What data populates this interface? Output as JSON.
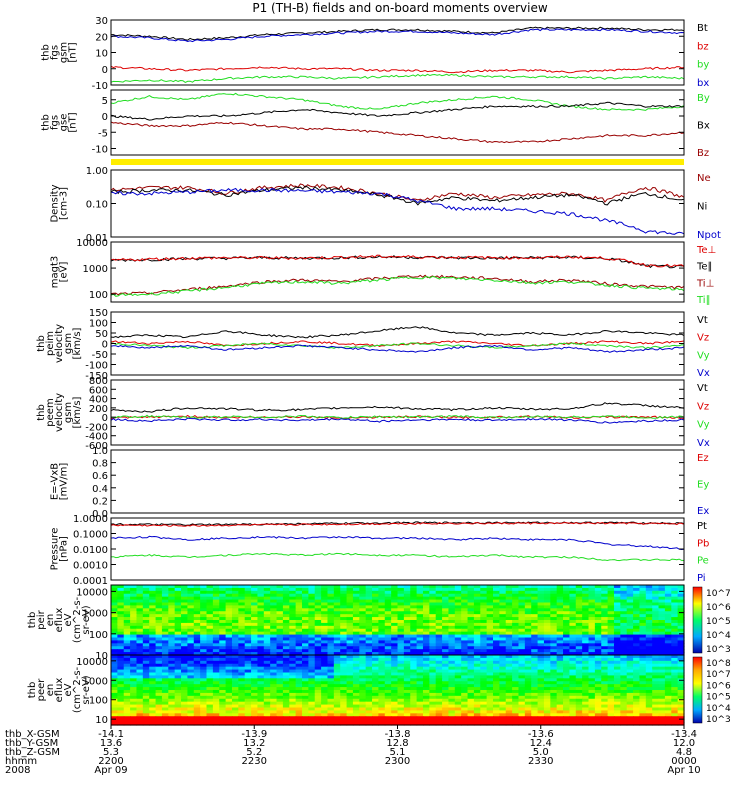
{
  "title": "P1 (TH-B) fields and on-board moments overview",
  "colors": {
    "black": "#000000",
    "red": "#dd0000",
    "darkred": "#990000",
    "green": "#22dd22",
    "blue": "#0000cc",
    "yellow": "#ffee00"
  },
  "chart_data": [
    {
      "type": "line",
      "panel": "fgs_gsm",
      "ylabel": [
        "thb",
        "fgs",
        "gsm",
        "[nT]"
      ],
      "ylim": [
        -10,
        30
      ],
      "yticks": [
        "30",
        "20",
        "10",
        "0",
        "-10"
      ],
      "legend": [
        {
          "name": "Bt",
          "color": "black"
        },
        {
          "name": "bz",
          "color": "red"
        },
        {
          "name": "by",
          "color": "green"
        },
        {
          "name": "bx",
          "color": "blue"
        }
      ],
      "series": [
        {
          "name": "Bt",
          "color": "black",
          "values": [
            21,
            20,
            18,
            19,
            21,
            22,
            23,
            24,
            24,
            23,
            22,
            25,
            25,
            25,
            24,
            24
          ]
        },
        {
          "name": "bx",
          "color": "blue",
          "values": [
            20,
            19,
            17,
            18,
            20,
            21,
            22,
            23,
            23,
            22,
            21,
            24,
            24,
            24,
            23,
            22
          ]
        },
        {
          "name": "bz",
          "color": "red",
          "values": [
            1,
            0,
            -1,
            0,
            1,
            0,
            0,
            -1,
            -1,
            -2,
            -1,
            -1,
            -2,
            -1,
            0,
            1
          ]
        },
        {
          "name": "by",
          "color": "green",
          "values": [
            -8,
            -7,
            -8,
            -6,
            -5,
            -5,
            -6,
            -5,
            -4,
            -4,
            -5,
            -5,
            -5,
            -6,
            -5,
            -6
          ]
        }
      ]
    },
    {
      "type": "line",
      "panel": "fgs_gse",
      "ylabel": [
        "thb",
        "fgs",
        "gse",
        "[nT]"
      ],
      "ylim": [
        -12,
        8
      ],
      "yticks": [
        "5",
        "0",
        "-5",
        "-10"
      ],
      "legend": [
        {
          "name": "By",
          "color": "green"
        },
        {
          "name": "Bx",
          "color": "black"
        },
        {
          "name": "Bz",
          "color": "darkred"
        }
      ],
      "series": [
        {
          "name": "By",
          "color": "green",
          "values": [
            4,
            6,
            5,
            7,
            6,
            5,
            3,
            2,
            4,
            5,
            6,
            5,
            3,
            2,
            2,
            3
          ]
        },
        {
          "name": "Bx",
          "color": "black",
          "values": [
            0,
            -1,
            0,
            0,
            1,
            2,
            1,
            0,
            1,
            2,
            3,
            3,
            3,
            4,
            3,
            3
          ]
        },
        {
          "name": "Bz",
          "color": "darkred",
          "values": [
            -2,
            -3,
            -3,
            -2,
            -3,
            -4,
            -4,
            -5,
            -6,
            -7,
            -8,
            -8,
            -7,
            -6,
            -6,
            -5
          ]
        }
      ]
    },
    {
      "type": "line",
      "panel": "density",
      "ylabel": [
        "Density",
        "[cm-3]"
      ],
      "scale": "log",
      "ylim": [
        0.01,
        1.0
      ],
      "yticks": [
        "1.00",
        "0.10",
        "0.01"
      ],
      "legend": [
        {
          "name": "Ne",
          "color": "darkred"
        },
        {
          "name": "Ni",
          "color": "black"
        },
        {
          "name": "Npot",
          "color": "blue"
        }
      ],
      "series": [
        {
          "name": "Ne",
          "color": "darkred",
          "values": [
            0.25,
            0.3,
            0.3,
            0.2,
            0.3,
            0.35,
            0.3,
            0.2,
            0.12,
            0.2,
            0.15,
            0.18,
            0.2,
            0.12,
            0.3,
            0.15
          ]
        },
        {
          "name": "Ni",
          "color": "black",
          "values": [
            0.22,
            0.25,
            0.25,
            0.18,
            0.25,
            0.3,
            0.25,
            0.18,
            0.1,
            0.15,
            0.12,
            0.15,
            0.18,
            0.1,
            0.2,
            0.12
          ]
        },
        {
          "name": "Npot",
          "color": "blue",
          "values": [
            0.2,
            0.2,
            0.22,
            0.25,
            0.25,
            0.24,
            0.22,
            0.2,
            0.12,
            0.07,
            0.07,
            0.06,
            0.05,
            0.03,
            0.015,
            0.012
          ]
        }
      ]
    },
    {
      "type": "line",
      "panel": "temperature",
      "ylabel": [
        "magt3",
        "[eV]"
      ],
      "scale": "log",
      "ylim": [
        50,
        10000
      ],
      "yticks": [
        "10000",
        "1000",
        "100"
      ],
      "legend": [
        {
          "name": "Te⊥",
          "color": "red"
        },
        {
          "name": "Te∥",
          "color": "black"
        },
        {
          "name": "Ti⊥",
          "color": "darkred"
        },
        {
          "name": "Ti∥",
          "color": "green"
        }
      ],
      "series": [
        {
          "name": "Te∥",
          "color": "black",
          "values": [
            2000,
            2100,
            2300,
            2400,
            2500,
            2400,
            2500,
            2700,
            2600,
            2500,
            2400,
            2500,
            2600,
            2300,
            1200,
            1100
          ]
        },
        {
          "name": "Te⊥",
          "color": "red",
          "values": [
            2000,
            2200,
            2400,
            2500,
            2500,
            2400,
            2600,
            2800,
            2700,
            2600,
            2500,
            2500,
            2700,
            2400,
            1300,
            1200
          ]
        },
        {
          "name": "Ti⊥",
          "color": "darkred",
          "values": [
            100,
            110,
            150,
            200,
            300,
            350,
            300,
            400,
            500,
            450,
            400,
            300,
            350,
            250,
            200,
            180
          ]
        },
        {
          "name": "Ti∥",
          "color": "green",
          "values": [
            90,
            100,
            130,
            180,
            260,
            300,
            260,
            350,
            450,
            400,
            350,
            270,
            300,
            220,
            170,
            150
          ]
        }
      ]
    },
    {
      "type": "line",
      "panel": "peim_velocity",
      "ylabel": [
        "thb",
        "peim",
        "velocity",
        "gsm",
        "[km/s]"
      ],
      "ylim": [
        -150,
        150
      ],
      "yticks": [
        "150",
        "100",
        "50",
        "0",
        "-50",
        "-100",
        "-150"
      ],
      "legend": [
        {
          "name": "Vt",
          "color": "black"
        },
        {
          "name": "Vz",
          "color": "red"
        },
        {
          "name": "Vy",
          "color": "green"
        },
        {
          "name": "Vx",
          "color": "blue"
        }
      ],
      "series": [
        {
          "name": "Vt",
          "color": "black",
          "values": [
            30,
            40,
            30,
            60,
            40,
            30,
            40,
            60,
            80,
            50,
            40,
            50,
            40,
            60,
            50,
            40
          ]
        },
        {
          "name": "Vz",
          "color": "red",
          "values": [
            10,
            0,
            10,
            -10,
            0,
            10,
            0,
            -10,
            0,
            10,
            0,
            -10,
            0,
            10,
            0,
            10
          ]
        },
        {
          "name": "Vy",
          "color": "green",
          "values": [
            0,
            -10,
            -20,
            -10,
            0,
            -10,
            -20,
            -10,
            0,
            -10,
            -20,
            -10,
            0,
            -10,
            -20,
            -10
          ]
        },
        {
          "name": "Vx",
          "color": "blue",
          "values": [
            -10,
            -20,
            -10,
            -30,
            -20,
            -10,
            -20,
            -30,
            -40,
            -20,
            -10,
            -30,
            -20,
            -40,
            -30,
            -20
          ]
        }
      ]
    },
    {
      "type": "line",
      "panel": "peem_velocity",
      "ylabel": [
        "thb",
        "peem",
        "velocity",
        "gsm",
        "[km/s]"
      ],
      "ylim": [
        -600,
        800
      ],
      "yticks": [
        "800",
        "600",
        "400",
        "200",
        "0",
        "-200",
        "-400",
        "-600"
      ],
      "legend": [
        {
          "name": "Vt",
          "color": "black"
        },
        {
          "name": "Vz",
          "color": "red"
        },
        {
          "name": "Vy",
          "color": "green"
        },
        {
          "name": "Vx",
          "color": "blue"
        }
      ],
      "series": [
        {
          "name": "Vt",
          "color": "black",
          "values": [
            150,
            120,
            200,
            180,
            150,
            160,
            200,
            220,
            180,
            160,
            200,
            170,
            180,
            300,
            250,
            200
          ]
        },
        {
          "name": "Vz",
          "color": "red",
          "values": [
            -20,
            0,
            20,
            -10,
            0,
            10,
            -20,
            0,
            10,
            -10,
            0,
            20,
            -10,
            0,
            10,
            -20
          ]
        },
        {
          "name": "Vy",
          "color": "green",
          "values": [
            0,
            20,
            -10,
            10,
            0,
            20,
            -10,
            10,
            0,
            20,
            -10,
            10,
            0,
            20,
            -10,
            10
          ]
        },
        {
          "name": "Vx",
          "color": "blue",
          "values": [
            -50,
            -80,
            -40,
            -60,
            -50,
            -70,
            -40,
            -90,
            -60,
            -50,
            -70,
            -40,
            -60,
            -120,
            -80,
            -60
          ]
        }
      ]
    },
    {
      "type": "line",
      "panel": "efield",
      "ylabel": [
        "E=-VxB",
        "[mV/m]"
      ],
      "ylim": [
        0.0,
        1.0
      ],
      "yticks": [
        "1.0",
        "0.8",
        "0.6",
        "0.4",
        "0.2",
        "0.0"
      ],
      "legend": [
        {
          "name": "Ez",
          "color": "red"
        },
        {
          "name": "Ey",
          "color": "green"
        },
        {
          "name": "Ex",
          "color": "blue"
        }
      ],
      "series": []
    },
    {
      "type": "line",
      "panel": "pressure",
      "ylabel": [
        "Pressure",
        "[nPa]"
      ],
      "scale": "log",
      "ylim": [
        0.0001,
        1.0
      ],
      "yticks": [
        "1.0000",
        "0.1000",
        "0.0100",
        "0.0010",
        "0.0001"
      ],
      "legend": [
        {
          "name": "Pt",
          "color": "black"
        },
        {
          "name": "Pb",
          "color": "red"
        },
        {
          "name": "Pe",
          "color": "green"
        },
        {
          "name": "Pi",
          "color": "blue"
        }
      ],
      "series": [
        {
          "name": "Pt",
          "color": "black",
          "values": [
            0.4,
            0.38,
            0.37,
            0.38,
            0.4,
            0.42,
            0.45,
            0.48,
            0.5,
            0.5,
            0.5,
            0.5,
            0.5,
            0.5,
            0.48,
            0.45
          ]
        },
        {
          "name": "Pb",
          "color": "red",
          "values": [
            0.35,
            0.33,
            0.32,
            0.34,
            0.36,
            0.38,
            0.4,
            0.42,
            0.45,
            0.45,
            0.45,
            0.46,
            0.46,
            0.46,
            0.44,
            0.42
          ]
        },
        {
          "name": "Pi",
          "color": "blue",
          "values": [
            0.05,
            0.06,
            0.04,
            0.05,
            0.06,
            0.05,
            0.06,
            0.05,
            0.05,
            0.04,
            0.05,
            0.04,
            0.04,
            0.02,
            0.015,
            0.01
          ]
        },
        {
          "name": "Pe",
          "color": "green",
          "values": [
            0.003,
            0.004,
            0.003,
            0.004,
            0.005,
            0.004,
            0.005,
            0.004,
            0.004,
            0.003,
            0.004,
            0.003,
            0.003,
            0.002,
            0.002,
            0.002
          ]
        }
      ]
    },
    {
      "type": "heatmap",
      "panel": "peir_en_eflux",
      "ylabel": [
        "thb",
        "peir",
        "en",
        "eflux",
        "eV",
        "(cm^2-s-",
        "sr-eV)"
      ],
      "scale": "log",
      "ylim": [
        10,
        20000
      ],
      "yticks": [
        "10000",
        "1000",
        "100",
        "10"
      ],
      "colorbar": {
        "ticks": [
          "10^7",
          "10^6",
          "10^5",
          "10^4",
          "10^3"
        ]
      }
    },
    {
      "type": "heatmap",
      "panel": "peer_en_eflux",
      "ylabel": [
        "thb",
        "peer",
        "en",
        "eflux",
        "eV",
        "(cm^2-s-",
        "sr-eV)"
      ],
      "scale": "log",
      "ylim": [
        5,
        20000
      ],
      "yticks": [
        "10000",
        "1000",
        "100",
        "10"
      ],
      "colorbar": {
        "ticks": [
          "10^8",
          "10^7",
          "10^6",
          "10^5",
          "10^4",
          "10^3"
        ]
      }
    }
  ],
  "xaxis": {
    "row_labels": [
      "thb_X-GSM",
      "thb_Y-GSM",
      "thb_Z-GSM",
      "hhmm",
      "2008"
    ],
    "ticks": [
      {
        "rows": [
          "-14.1",
          "13.6",
          "5.3",
          "2200",
          "Apr 09"
        ]
      },
      {
        "rows": [
          "-13.9",
          "13.2",
          "5.2",
          "2230",
          ""
        ]
      },
      {
        "rows": [
          "-13.8",
          "12.8",
          "5.1",
          "2300",
          ""
        ]
      },
      {
        "rows": [
          "-13.6",
          "12.4",
          "5.0",
          "2330",
          ""
        ]
      },
      {
        "rows": [
          "-13.4",
          "12.0",
          "4.8",
          "0000",
          "Apr 10"
        ]
      }
    ]
  }
}
